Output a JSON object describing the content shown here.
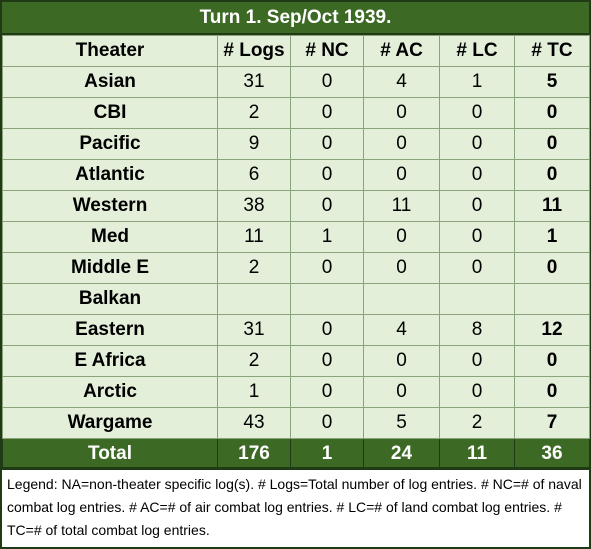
{
  "title": "Turn 1.  Sep/Oct 1939.",
  "headers": [
    "Theater",
    "# Logs",
    "# NC",
    "# AC",
    "# LC",
    "# TC"
  ],
  "rows": [
    {
      "theater": "Asian",
      "logs": "31",
      "nc": "0",
      "ac": "4",
      "lc": "1",
      "tc": "5"
    },
    {
      "theater": "CBI",
      "logs": "2",
      "nc": "0",
      "ac": "0",
      "lc": "0",
      "tc": "0"
    },
    {
      "theater": "Pacific",
      "logs": "9",
      "nc": "0",
      "ac": "0",
      "lc": "0",
      "tc": "0"
    },
    {
      "theater": "Atlantic",
      "logs": "6",
      "nc": "0",
      "ac": "0",
      "lc": "0",
      "tc": "0"
    },
    {
      "theater": "Western",
      "logs": "38",
      "nc": "0",
      "ac": "11",
      "lc": "0",
      "tc": "11"
    },
    {
      "theater": "Med",
      "logs": "11",
      "nc": "1",
      "ac": "0",
      "lc": "0",
      "tc": "1"
    },
    {
      "theater": "Middle E",
      "logs": "2",
      "nc": "0",
      "ac": "0",
      "lc": "0",
      "tc": "0"
    },
    {
      "theater": "Balkan",
      "logs": "",
      "nc": "",
      "ac": "",
      "lc": "",
      "tc": ""
    },
    {
      "theater": "Eastern",
      "logs": "31",
      "nc": "0",
      "ac": "4",
      "lc": "8",
      "tc": "12"
    },
    {
      "theater": "E Africa",
      "logs": "2",
      "nc": "0",
      "ac": "0",
      "lc": "0",
      "tc": "0"
    },
    {
      "theater": "Arctic",
      "logs": "1",
      "nc": "0",
      "ac": "0",
      "lc": "0",
      "tc": "0"
    },
    {
      "theater": "Wargame",
      "logs": "43",
      "nc": "0",
      "ac": "5",
      "lc": "2",
      "tc": "7"
    }
  ],
  "total": {
    "theater": "Total",
    "logs": "176",
    "nc": "1",
    "ac": "24",
    "lc": "11",
    "tc": "36"
  },
  "legend": "Legend:  NA=non-theater specific log(s).  # Logs=Total number of log entries.  # NC=# of naval combat log entries.  # AC=# of air combat log entries.  # LC=# of land combat log entries.  # TC=# of total combat log entries.",
  "colors": {
    "header_green": "#3c6a24",
    "cell_green": "#e3efd9",
    "border_dark": "#1f3a14"
  }
}
